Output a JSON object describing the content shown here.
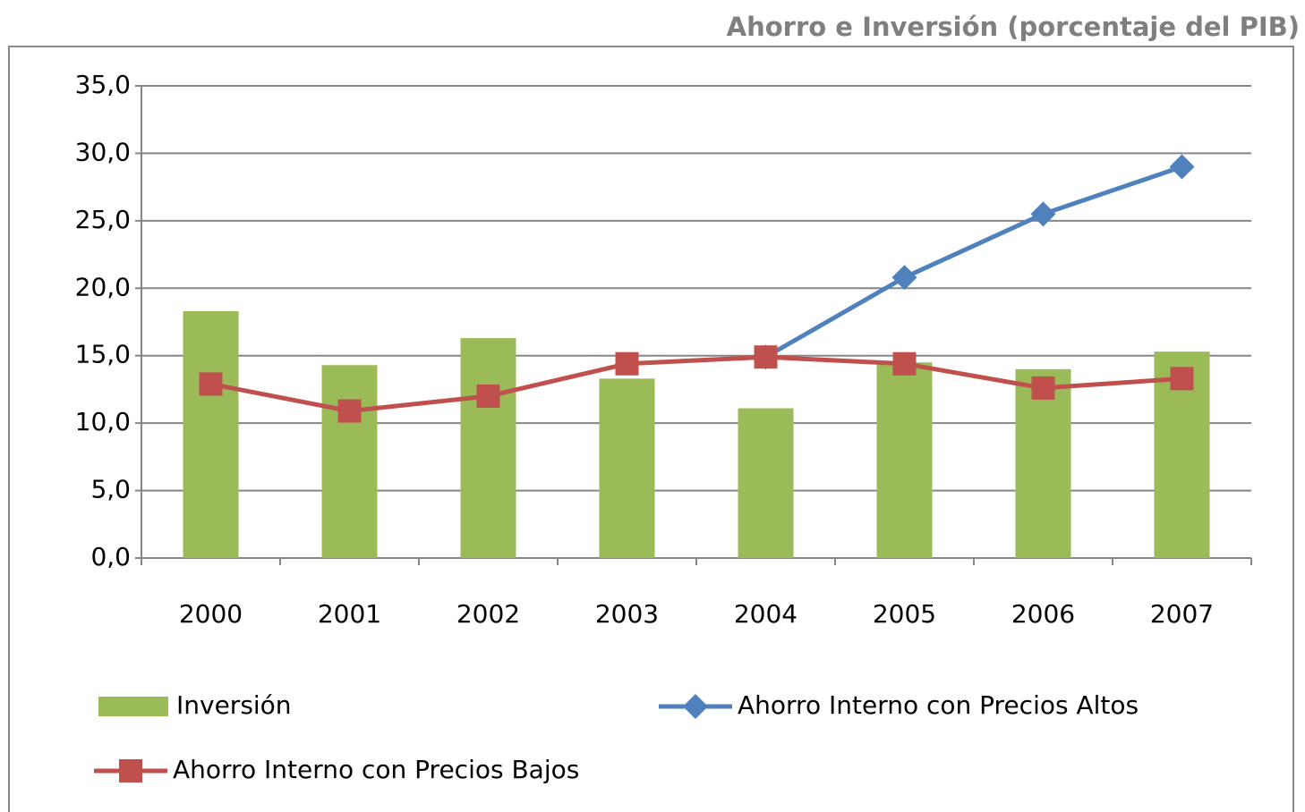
{
  "chart_data": {
    "type": "bar",
    "title": "Ahorro e Inversión (porcentaje del PIB)",
    "categories": [
      "2000",
      "2001",
      "2002",
      "2003",
      "2004",
      "2005",
      "2006",
      "2007"
    ],
    "series": [
      {
        "name": "Inversión",
        "type": "bar",
        "color": "#9bbb59",
        "values": [
          18.3,
          14.3,
          16.3,
          13.3,
          11.1,
          14.5,
          14.0,
          15.3
        ]
      },
      {
        "name": "Ahorro Interno con Precios Altos",
        "type": "line",
        "marker": "diamond",
        "color": "#4f81bd",
        "values": [
          null,
          null,
          null,
          null,
          14.9,
          20.8,
          25.5,
          29.0
        ]
      },
      {
        "name": "Ahorro Interno con Precios Bajos",
        "type": "line",
        "marker": "square",
        "color": "#c0504d",
        "values": [
          12.9,
          10.9,
          12.0,
          14.4,
          14.9,
          14.4,
          12.6,
          13.3
        ]
      }
    ],
    "ylim": [
      0,
      35
    ],
    "yticks": [
      {
        "value": 0,
        "label": "0,0"
      },
      {
        "value": 5,
        "label": "5,0"
      },
      {
        "value": 10,
        "label": "10,0"
      },
      {
        "value": 15,
        "label": "15,0"
      },
      {
        "value": 20,
        "label": "20,0"
      },
      {
        "value": 25,
        "label": "25,0"
      },
      {
        "value": 30,
        "label": "30,0"
      },
      {
        "value": 35,
        "label": "35,0"
      }
    ],
    "grid": true,
    "legend": "bottom"
  }
}
